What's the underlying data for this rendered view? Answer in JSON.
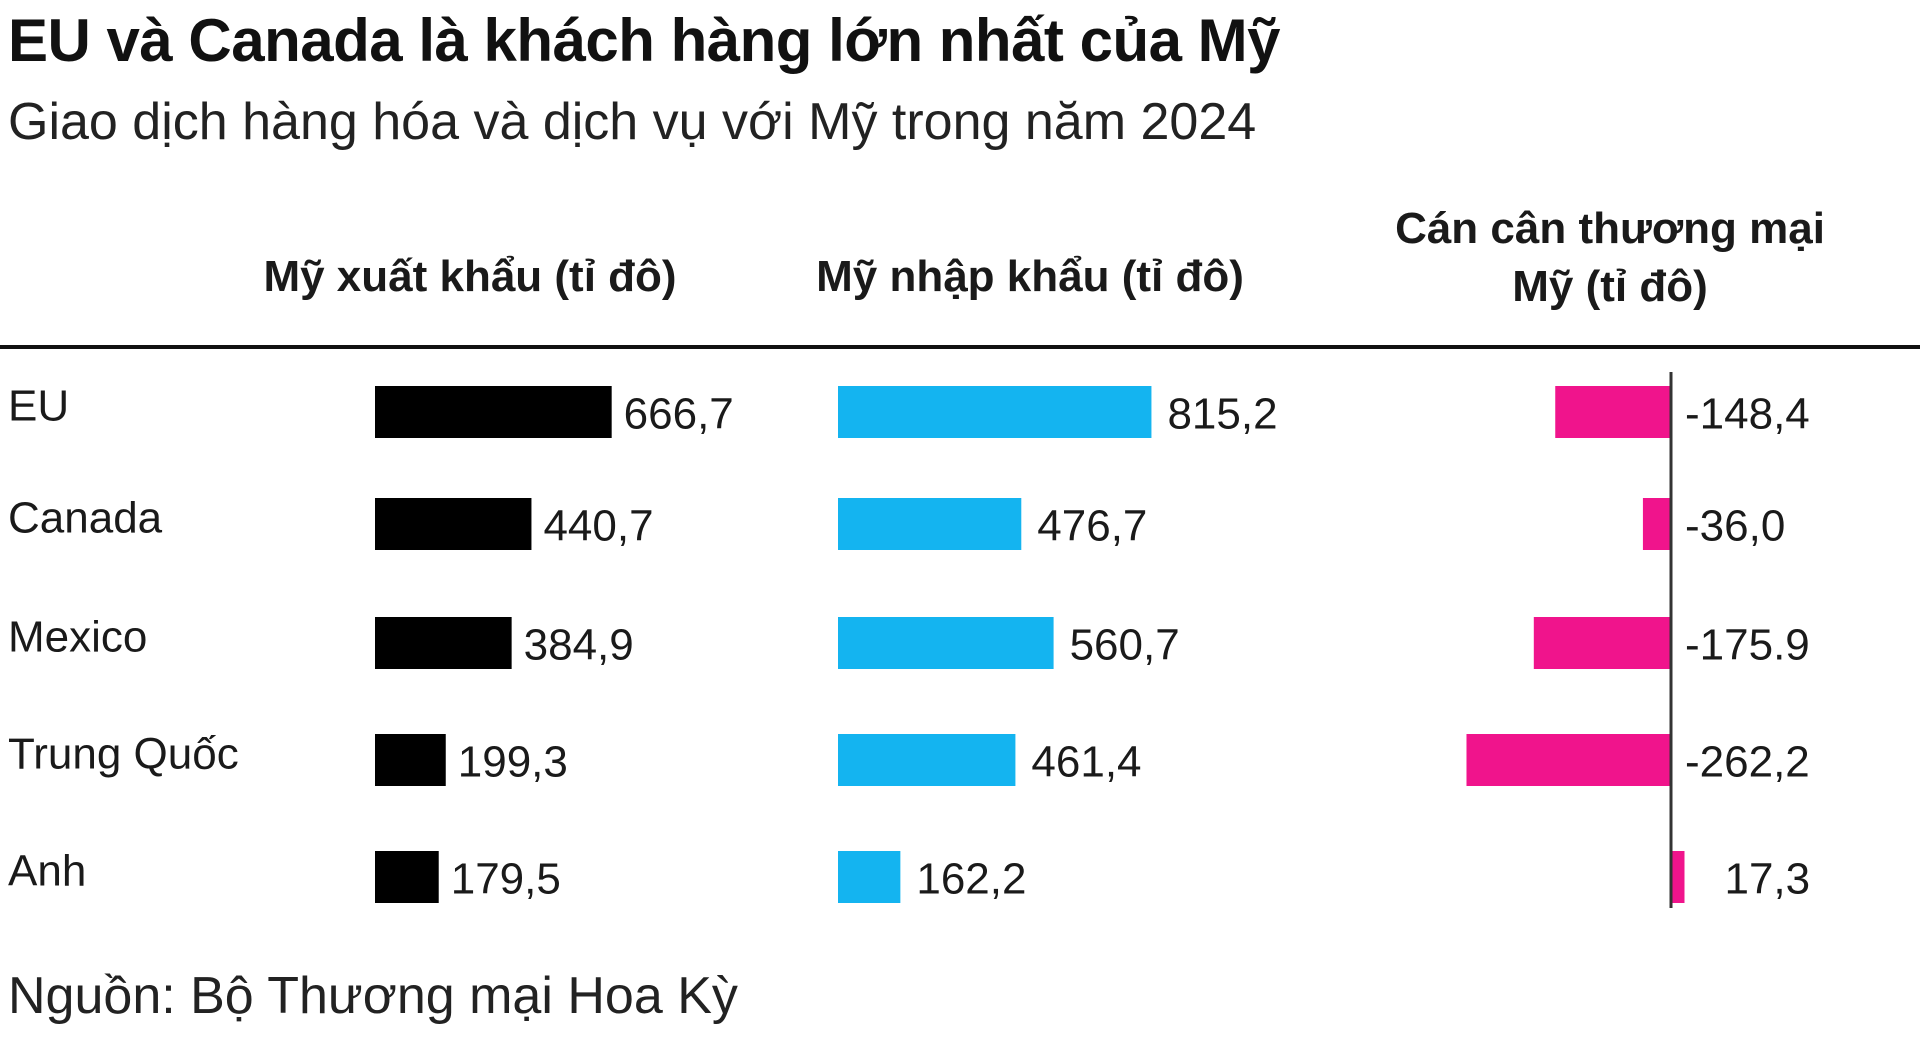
{
  "title": "EU và Canada là khách hàng lớn nhất của Mỹ",
  "subtitle": "Giao dịch hàng hóa và dịch vụ với Mỹ trong năm 2024",
  "source": "Nguồn: Bộ Thương mại Hoa Kỳ",
  "colors": {
    "export": "#000000",
    "import": "#14b4f0",
    "balance": "#f0148c",
    "text": "#1a1a1a"
  },
  "chart_data": {
    "type": "bar",
    "orientation": "horizontal",
    "categories": [
      "EU",
      "Canada",
      "Mexico",
      "Trung Quốc",
      "Anh"
    ],
    "series": [
      {
        "name": "Mỹ xuất khẩu (tỉ đô)",
        "values": [
          666.7,
          440.7,
          384.9,
          199.3,
          179.5
        ],
        "labels": [
          "666,7",
          "440,7",
          "384,9",
          "199,3",
          "179,5"
        ]
      },
      {
        "name": "Mỹ nhập khẩu (tỉ đô)",
        "values": [
          815.2,
          476.7,
          560.7,
          461.4,
          162.2
        ],
        "labels": [
          "815,2",
          "476,7",
          "560,7",
          "461,4",
          "162,2"
        ]
      },
      {
        "name": "Cán cân thương mại Mỹ (tỉ đô)",
        "values": [
          -148.4,
          -36.0,
          -175.9,
          -262.2,
          17.3
        ],
        "labels": [
          "-148,4",
          "-36,0",
          "-175.9",
          "-262,2",
          "17,3"
        ]
      }
    ],
    "column_headers": [
      "Mỹ xuất khẩu (tỉ đô)",
      "Mỹ nhập khẩu (tỉ đô)",
      "Cán cân thương mại",
      "Mỹ (tỉ đô)"
    ],
    "grid": false,
    "legend": "none"
  }
}
